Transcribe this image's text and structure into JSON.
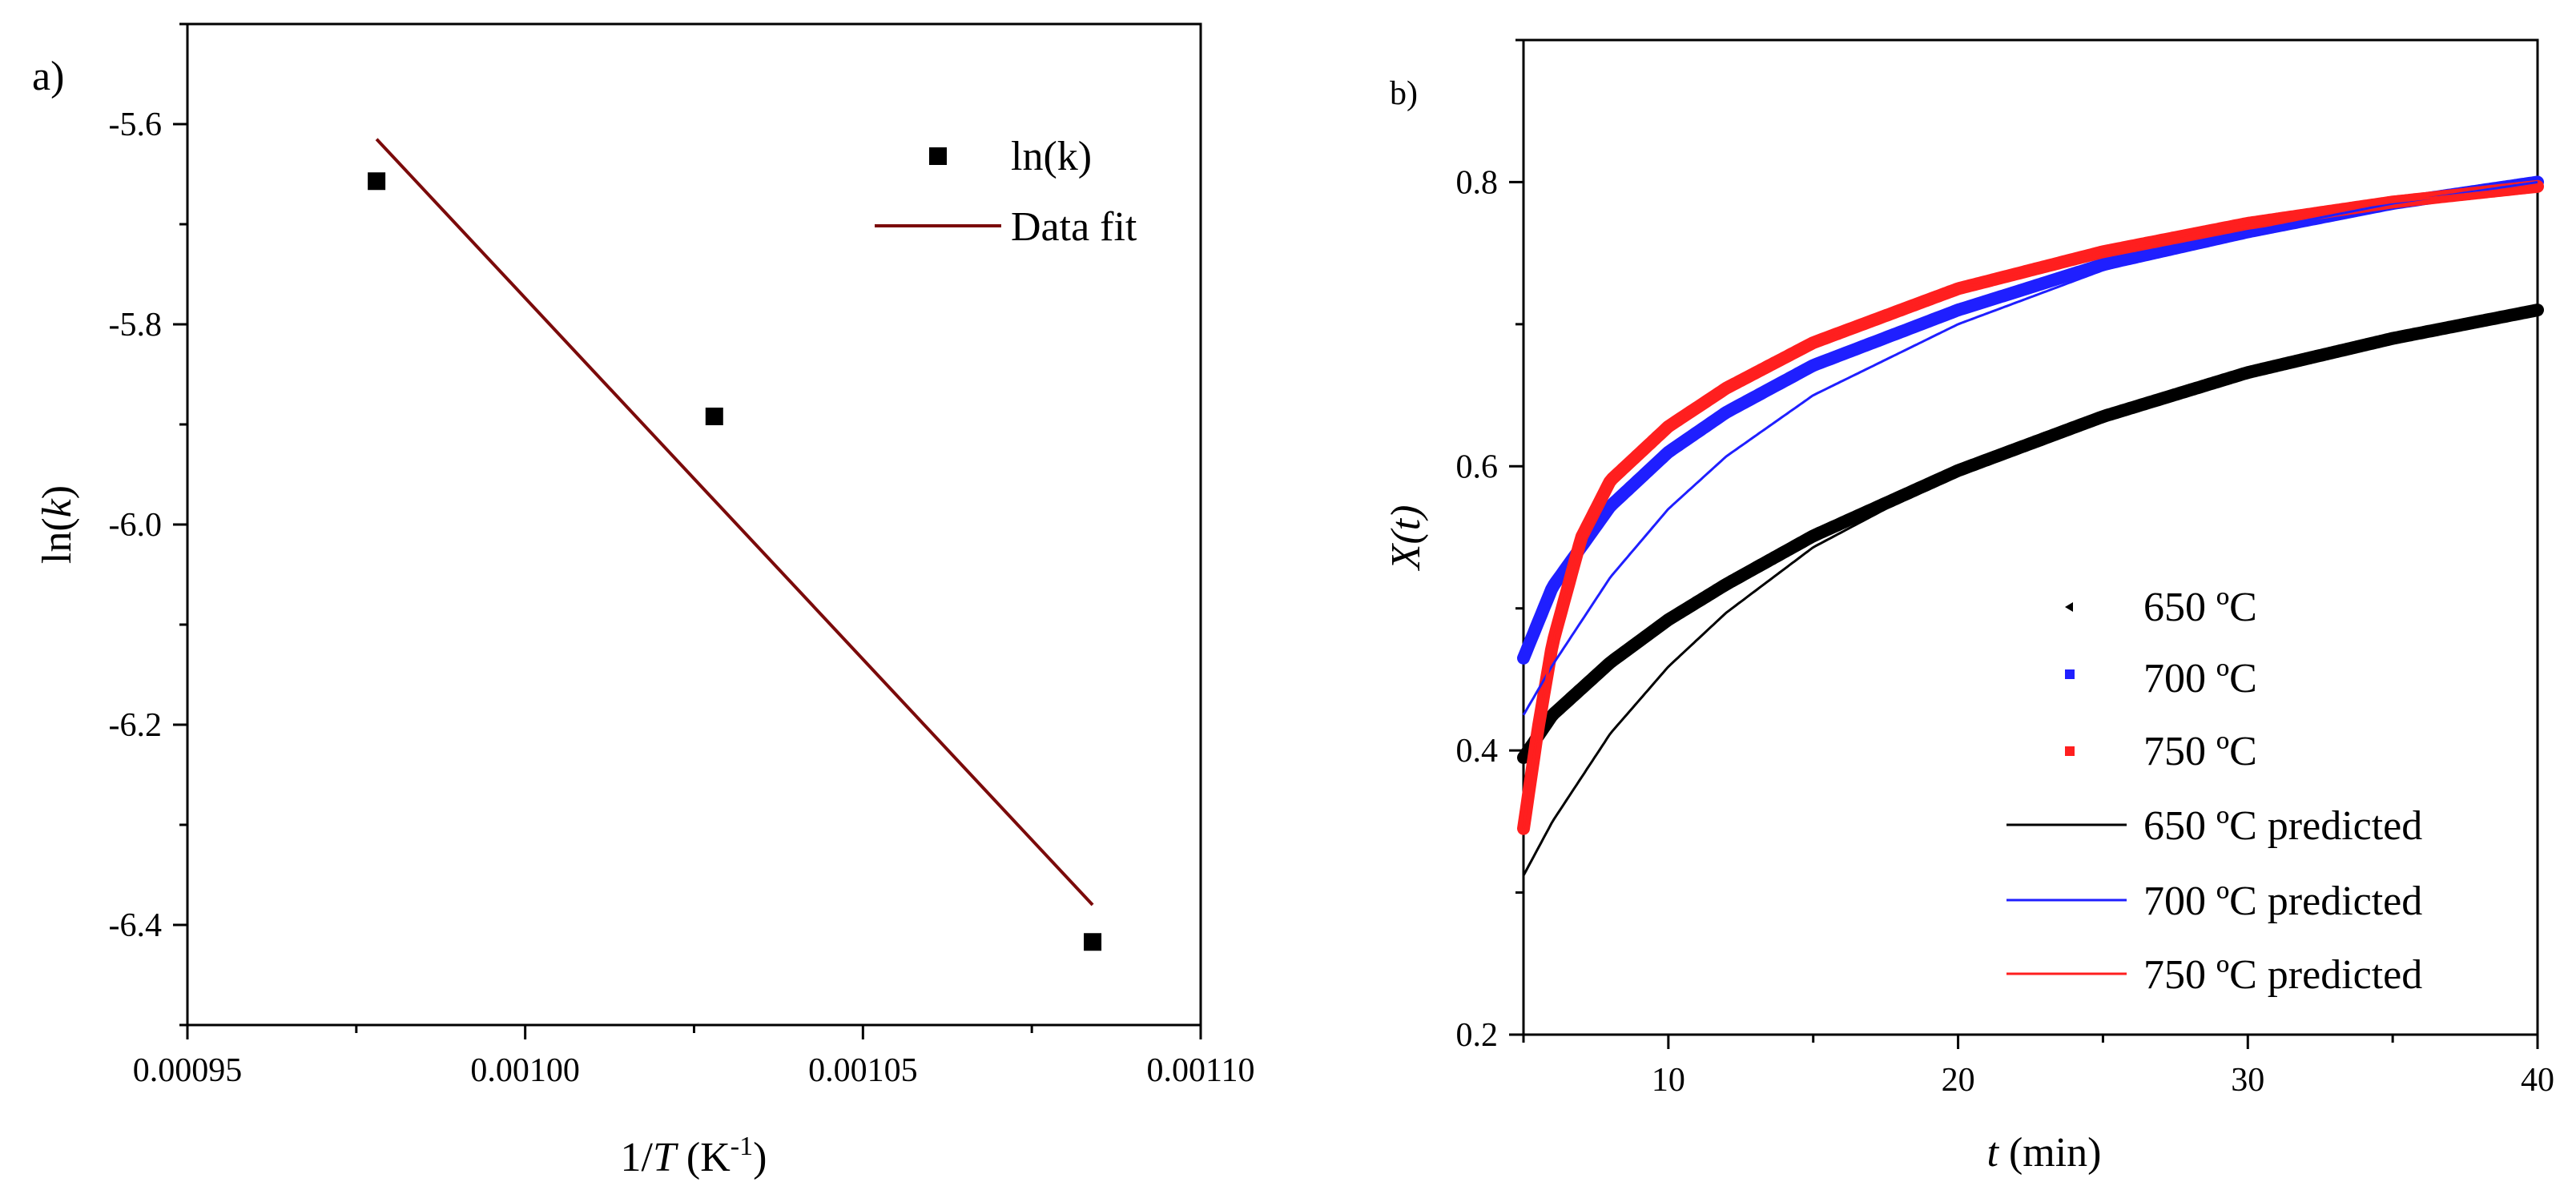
{
  "chart_data": [
    {
      "panel": "a)",
      "type": "scatter",
      "xlabel": "1/T (K-1)",
      "xlabel_parts": {
        "prefix": "1/",
        "italic": "T",
        "unit_open": " (K",
        "sup": "-1",
        "unit_close": ")"
      },
      "ylabel": "ln(k)",
      "ylabel_parts": {
        "prefix": "ln(",
        "italic": "k",
        "suffix": ")"
      },
      "xlim": [
        0.00095,
        0.0011
      ],
      "ylim": [
        -6.5,
        -5.5
      ],
      "xticks": [
        0.00095,
        0.001,
        0.00105,
        0.0011
      ],
      "xtick_labels": [
        "0.00095",
        "0.00100",
        "0.00105",
        "0.00110"
      ],
      "yticks": [
        -6.4,
        -6.2,
        -6.0,
        -5.8,
        -5.6
      ],
      "ytick_labels": [
        "-6.4",
        "-6.2",
        "-6.0",
        "-5.8",
        "-5.6"
      ],
      "legend": [
        "ln(k)",
        "Data fit"
      ],
      "legend_position": "top-right",
      "series": [
        {
          "name": "ln(k)",
          "kind": "markers",
          "color": "#000000",
          "x": [
            0.000978,
            0.001028,
            0.001084
          ],
          "y": [
            -5.657,
            -5.892,
            -6.417
          ]
        },
        {
          "name": "Data fit",
          "kind": "line",
          "color": "#7b0a0a",
          "x": [
            0.000978,
            0.001084
          ],
          "y": [
            -5.615,
            -6.38
          ]
        }
      ]
    },
    {
      "panel": "b)",
      "type": "line",
      "xlabel": "t (min)",
      "xlabel_parts": {
        "italic": "t",
        "suffix": " (min)"
      },
      "ylabel": "X(t)",
      "xlim": [
        5,
        40
      ],
      "ylim": [
        0.2,
        0.9
      ],
      "xticks": [
        10,
        20,
        30,
        40
      ],
      "xtick_labels": [
        "10",
        "20",
        "30",
        "40"
      ],
      "yticks": [
        0.2,
        0.4,
        0.6,
        0.8
      ],
      "ytick_labels": [
        "0.2",
        "0.4",
        "0.6",
        "0.8"
      ],
      "legend": [
        "650 ºC",
        "700 ºC",
        "750 ºC",
        "650 ºC predicted",
        "700 ºC predicted",
        "750 ºC predicted"
      ],
      "legend_position": "bottom-right",
      "series": [
        {
          "name": "650 ºC",
          "kind": "markers",
          "color": "#000000",
          "x": [
            5,
            6,
            8,
            10,
            12,
            15,
            20,
            25,
            30,
            35,
            40
          ],
          "y": [
            0.395,
            0.425,
            0.462,
            0.492,
            0.517,
            0.551,
            0.597,
            0.635,
            0.666,
            0.69,
            0.71
          ]
        },
        {
          "name": "700 ºC",
          "kind": "markers",
          "color": "#1f1fff",
          "x": [
            5,
            6,
            8,
            10,
            12,
            15,
            20,
            25,
            30,
            35,
            40
          ],
          "y": [
            0.465,
            0.515,
            0.572,
            0.61,
            0.638,
            0.671,
            0.71,
            0.742,
            0.765,
            0.785,
            0.8
          ]
        },
        {
          "name": "750 ºC",
          "kind": "markers",
          "color": "#ff1f1f",
          "x": [
            5,
            5.5,
            6,
            7,
            8,
            10,
            12,
            15,
            20,
            25,
            30,
            35,
            40
          ],
          "y": [
            0.345,
            0.415,
            0.475,
            0.55,
            0.59,
            0.628,
            0.655,
            0.687,
            0.725,
            0.751,
            0.771,
            0.786,
            0.797
          ]
        },
        {
          "name": "650 ºC predicted",
          "kind": "line",
          "color": "#000000",
          "x": [
            5,
            6,
            8,
            10,
            12,
            15,
            20,
            25,
            30,
            35,
            40
          ],
          "y": [
            0.312,
            0.35,
            0.412,
            0.459,
            0.497,
            0.543,
            0.597,
            0.636,
            0.666,
            0.69,
            0.71
          ]
        },
        {
          "name": "700 ºC predicted",
          "kind": "line",
          "color": "#1f1fff",
          "x": [
            5,
            6,
            8,
            10,
            12,
            15,
            20,
            25,
            30,
            35,
            40
          ],
          "y": [
            0.425,
            0.46,
            0.522,
            0.57,
            0.607,
            0.65,
            0.7,
            0.738,
            0.765,
            0.785,
            0.8
          ]
        },
        {
          "name": "750 ºC predicted",
          "kind": "line",
          "color": "#ff1f1f",
          "x": [
            5,
            5.5,
            6,
            7,
            8,
            10,
            12,
            15,
            20,
            25,
            30,
            35,
            40
          ],
          "y": [
            0.345,
            0.415,
            0.475,
            0.55,
            0.59,
            0.628,
            0.655,
            0.687,
            0.725,
            0.751,
            0.771,
            0.786,
            0.797
          ]
        }
      ]
    }
  ]
}
